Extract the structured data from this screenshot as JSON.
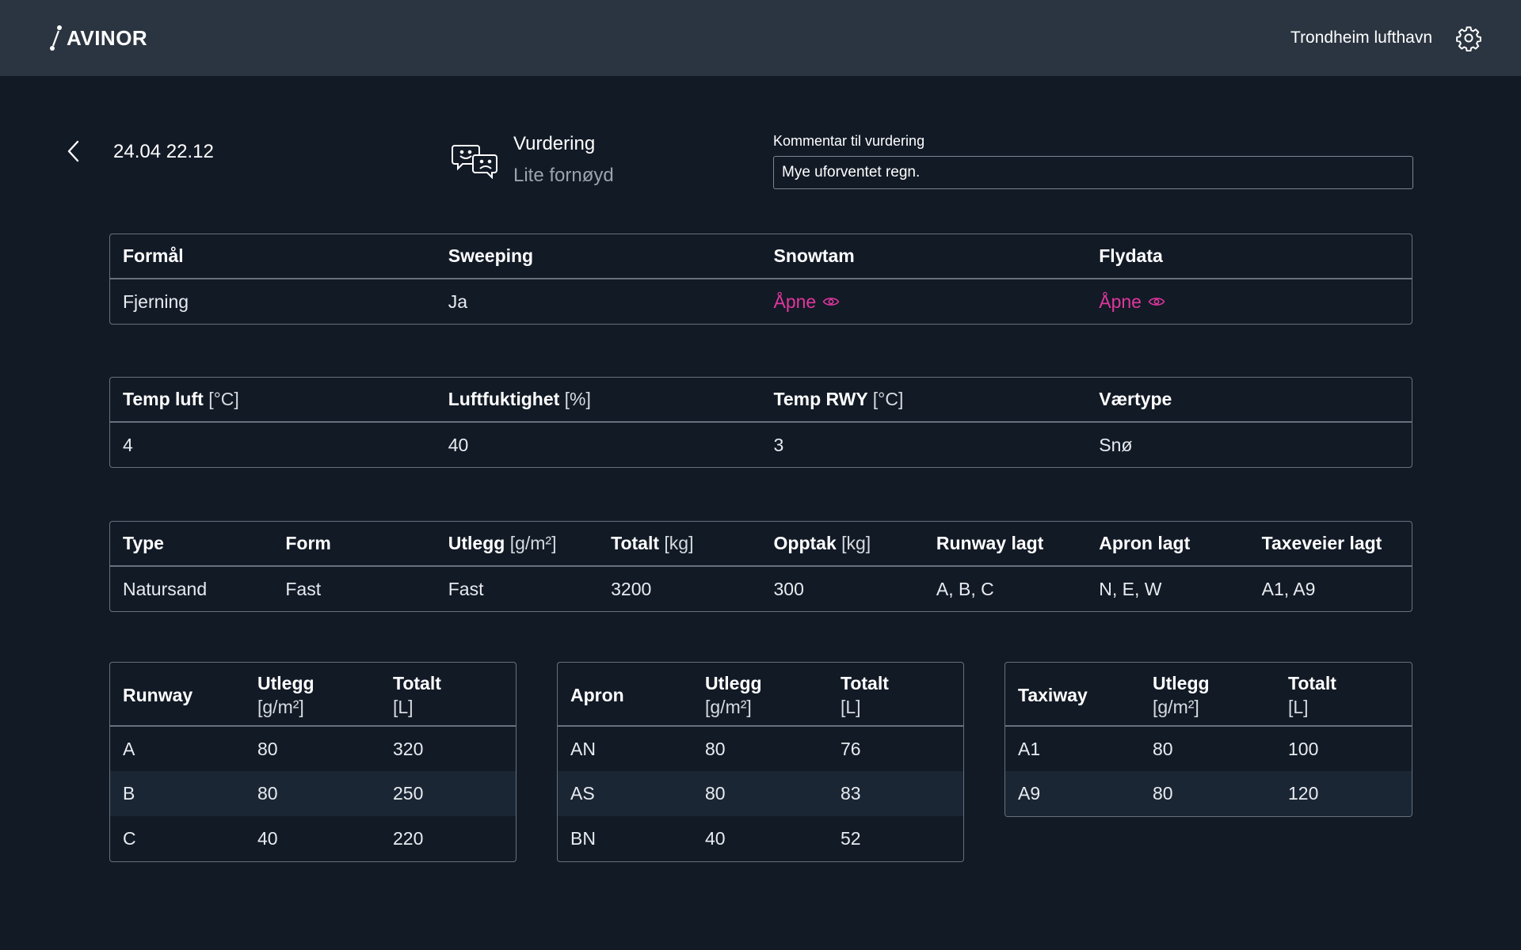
{
  "app": {
    "logo_text": "AVINOR",
    "airport": "Trondheim lufthavn"
  },
  "header": {
    "datetime": "24.04 22.12",
    "rating_title": "Vurdering",
    "rating_value": "Lite fornøyd",
    "comment_label": "Kommentar til vurdering",
    "comment_value": "Mye uforventet regn."
  },
  "purpose_table": {
    "headers": [
      "Formål",
      "Sweeping",
      "Snowtam",
      "Flydata"
    ],
    "row": {
      "formal": "Fjerning",
      "sweeping": "Ja",
      "snowtam": "Åpne",
      "flydata": "Åpne"
    }
  },
  "weather_table": {
    "headers": [
      {
        "label": "Temp luft",
        "unit": "[°C]"
      },
      {
        "label": "Luftfuktighet",
        "unit": "[%]"
      },
      {
        "label": "Temp RWY",
        "unit": "[°C]"
      },
      {
        "label": "Værtype",
        "unit": ""
      }
    ],
    "row": [
      "4",
      "40",
      "3",
      "Snø"
    ]
  },
  "material_table": {
    "headers": [
      {
        "label": "Type",
        "unit": ""
      },
      {
        "label": "Form",
        "unit": ""
      },
      {
        "label": "Utlegg",
        "unit": "[g/m²]"
      },
      {
        "label": "Totalt",
        "unit": "[kg]"
      },
      {
        "label": "Opptak",
        "unit": "[kg]"
      },
      {
        "label": "Runway lagt",
        "unit": ""
      },
      {
        "label": "Apron lagt",
        "unit": ""
      },
      {
        "label": "Taxeveier lagt",
        "unit": ""
      }
    ],
    "row": [
      "Natursand",
      "Fast",
      "Fast",
      "3200",
      "300",
      "A, B, C",
      "N, E, W",
      "A1, A9"
    ]
  },
  "runway_table": {
    "headers": [
      {
        "line1": "Runway",
        "line2": ""
      },
      {
        "line1": "Utlegg",
        "line2": "[g/m²]"
      },
      {
        "line1": "Totalt",
        "line2": "[L]"
      }
    ],
    "rows": [
      [
        "A",
        "80",
        "320"
      ],
      [
        "B",
        "80",
        "250"
      ],
      [
        "C",
        "40",
        "220"
      ]
    ]
  },
  "apron_table": {
    "headers": [
      {
        "line1": "Apron",
        "line2": ""
      },
      {
        "line1": "Utlegg",
        "line2": "[g/m²]"
      },
      {
        "line1": "Totalt",
        "line2": "[L]"
      }
    ],
    "rows": [
      [
        "AN",
        "80",
        "76"
      ],
      [
        "AS",
        "80",
        "83"
      ],
      [
        "BN",
        "40",
        "52"
      ]
    ]
  },
  "taxiway_table": {
    "headers": [
      {
        "line1": "Taxiway",
        "line2": ""
      },
      {
        "line1": "Utlegg",
        "line2": "[g/m²]"
      },
      {
        "line1": "Totalt",
        "line2": "[L]"
      }
    ],
    "rows": [
      [
        "A1",
        "80",
        "100"
      ],
      [
        "A9",
        "80",
        "120"
      ]
    ]
  },
  "icons": {
    "logo": "avinor-logo-icon",
    "settings": "gear-icon",
    "back": "chevron-left-icon",
    "rating": "rating-faces-icon",
    "open": "eye-icon"
  },
  "colors": {
    "background": "#121a26",
    "topbar": "#2b3541",
    "link": "#e0379d",
    "border": "#67707c"
  }
}
